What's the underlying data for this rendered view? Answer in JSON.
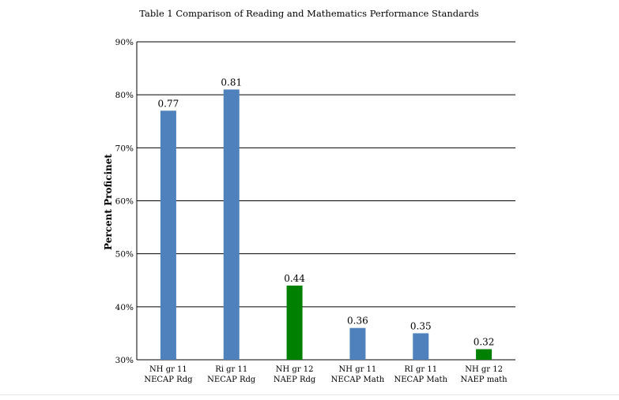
{
  "chart_data": {
    "type": "bar",
    "title": "Table 1 Comparison of Reading and Mathematics Performance Standards",
    "ylabel": "Percent Proficinet",
    "xlabel": "",
    "ylim": [
      0.3,
      0.9
    ],
    "ytick_values": [
      0.3,
      0.4,
      0.5,
      0.6,
      0.7,
      0.8,
      0.9
    ],
    "ytick_labels": [
      "30%",
      "40%",
      "50%",
      "60%",
      "70%",
      "80%",
      "90%"
    ],
    "grid": true,
    "legend": "none",
    "categories": [
      [
        "NH gr 11",
        "NECAP Rdg"
      ],
      [
        "Ri gr 11",
        "NECAP Rdg"
      ],
      [
        "NH gr 12",
        "NAEP Rdg"
      ],
      [
        "NH gr 11",
        "NECAP Math"
      ],
      [
        "RI gr 11",
        "NECAP Math"
      ],
      [
        "NH gr 12",
        "NAEP math"
      ]
    ],
    "values": [
      0.77,
      0.81,
      0.44,
      0.36,
      0.35,
      0.32
    ],
    "data_labels": [
      "0.77",
      "0.81",
      "0.44",
      "0.36",
      "0.35",
      "0.32"
    ],
    "bar_colors": [
      "#4f81bd",
      "#4f81bd",
      "#008000",
      "#4f81bd",
      "#4f81bd",
      "#008000"
    ]
  }
}
